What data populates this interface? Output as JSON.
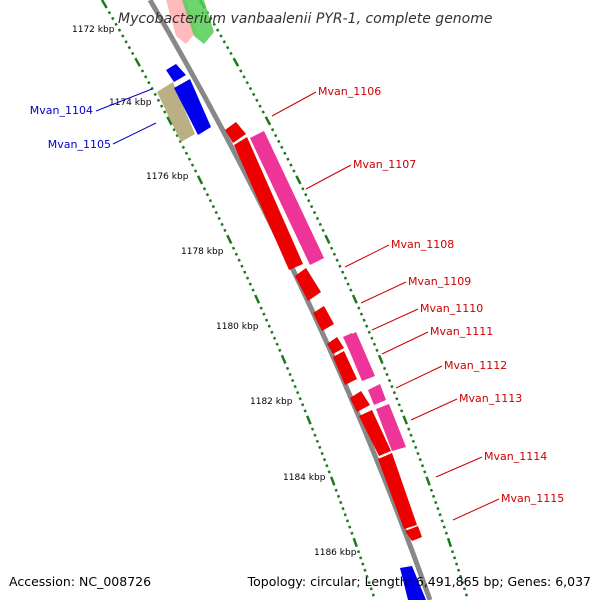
{
  "title": "Mycobacterium vanbaalenii PYR-1, complete genome",
  "footer": {
    "accession": "Accession: NC_008726",
    "summary": "Topology: circular; Length: 6,491,865 bp; Genes: 6,037"
  },
  "colors": {
    "backbone": "#888888",
    "tick": "#1a7a1a",
    "forward_label": "#cc0000",
    "reverse_label": "#0000cc",
    "red": "#ee0000",
    "magenta": "#ee3399",
    "blue": "#0000ee",
    "olive": "#bbb083",
    "green": "#55cc55",
    "pink": "#ffbbbb"
  },
  "ticks": [
    {
      "kbp": 1172,
      "label": "1172 kbp"
    },
    {
      "kbp": 1174,
      "label": "1174 kbp"
    },
    {
      "kbp": 1176,
      "label": "1176 kbp"
    },
    {
      "kbp": 1178,
      "label": "1178 kbp"
    },
    {
      "kbp": 1180,
      "label": "1180 kbp"
    },
    {
      "kbp": 1182,
      "label": "1182 kbp"
    },
    {
      "kbp": 1184,
      "label": "1184 kbp"
    },
    {
      "kbp": 1186,
      "label": "1186 kbp"
    }
  ],
  "genes": [
    {
      "name": "Mvan_1104",
      "strand": "reverse",
      "color": "olive"
    },
    {
      "name": "Mvan_1105",
      "strand": "reverse",
      "color": "blue"
    },
    {
      "name": "Mvan_1106",
      "strand": "forward",
      "color": "red"
    },
    {
      "name": "Mvan_1107",
      "strand": "forward",
      "color": "magenta"
    },
    {
      "name": "Mvan_1108",
      "strand": "forward",
      "color": "red"
    },
    {
      "name": "Mvan_1109",
      "strand": "forward",
      "color": "red"
    },
    {
      "name": "Mvan_1110",
      "strand": "forward",
      "color": "red"
    },
    {
      "name": "Mvan_1111",
      "strand": "forward",
      "color": "magenta"
    },
    {
      "name": "Mvan_1112",
      "strand": "forward",
      "color": "red"
    },
    {
      "name": "Mvan_1113",
      "strand": "forward",
      "color": "magenta"
    },
    {
      "name": "Mvan_1114",
      "strand": "forward",
      "color": "red"
    },
    {
      "name": "Mvan_1115",
      "strand": "forward",
      "color": "red"
    }
  ]
}
